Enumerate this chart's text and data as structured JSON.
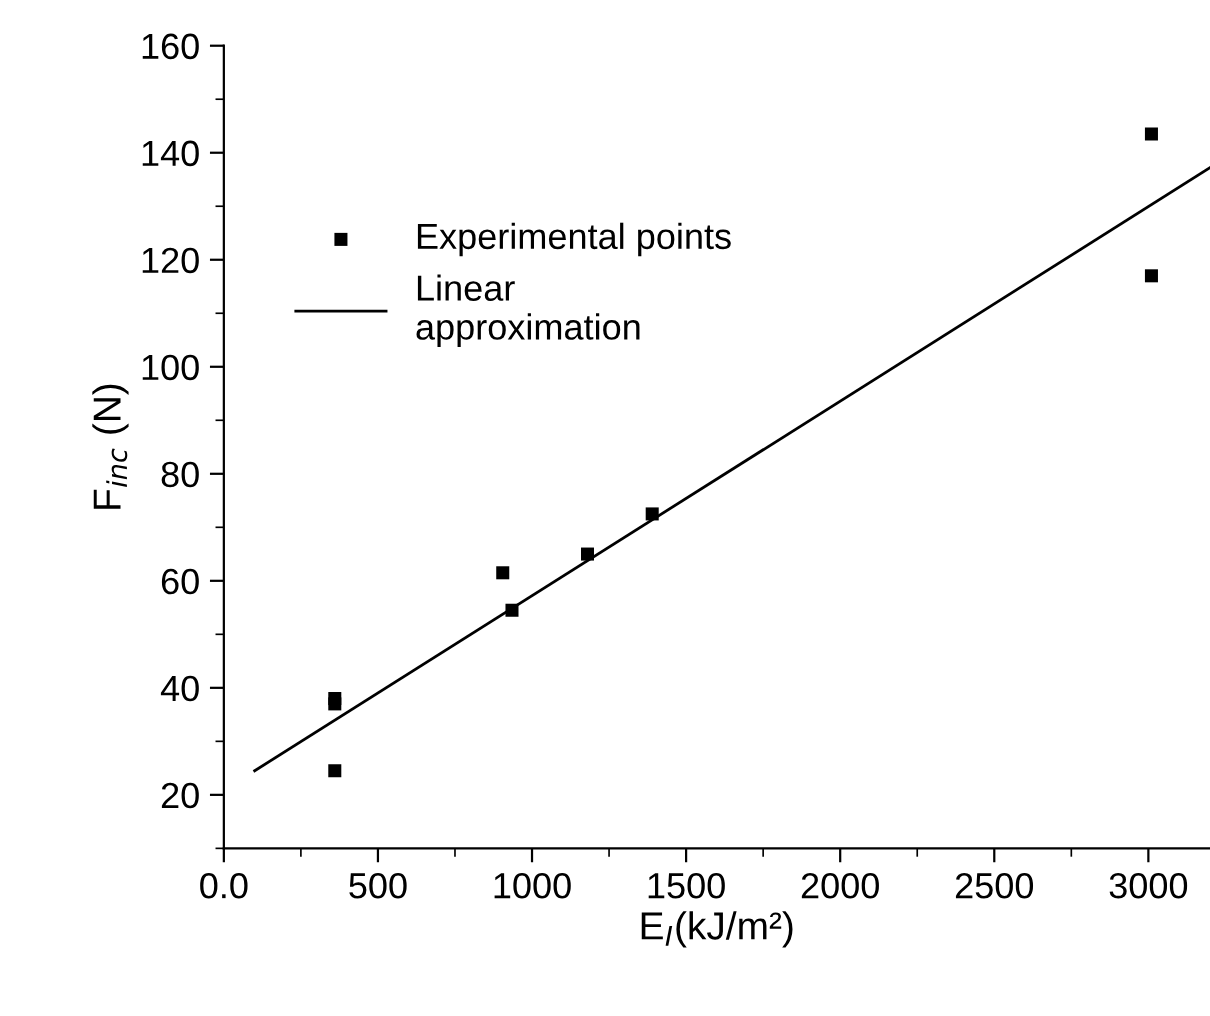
{
  "chart_data": {
    "type": "scatter",
    "xlabel": "E$_{I}$(kJ/m²)",
    "ylabel": "F$_{inc}$ (N)",
    "xlim": [
      0,
      3200
    ],
    "ylim": [
      10,
      160
    ],
    "xticks": [
      {
        "value": 0,
        "label": "0.0"
      },
      500,
      1000,
      1500,
      2000,
      2500,
      3000
    ],
    "yticks": [
      20,
      40,
      60,
      80,
      100,
      120,
      140,
      160
    ],
    "grid": false,
    "legend": "top left",
    "series": [
      {
        "name": "Experimental points",
        "marker": "square",
        "color": "#000000",
        "x": [
          360,
          360,
          360,
          905,
          935,
          1180,
          1390,
          3010,
          3010
        ],
        "values": [
          38,
          37,
          24.5,
          61.5,
          54.5,
          65,
          72.5,
          143.5,
          117
        ]
      },
      {
        "name": "Linear\napproximation",
        "type": "line",
        "color": "#000000",
        "line_style": "solid",
        "x": [
          100,
          3200
        ],
        "values": [
          24.5,
          137.2
        ]
      }
    ]
  }
}
